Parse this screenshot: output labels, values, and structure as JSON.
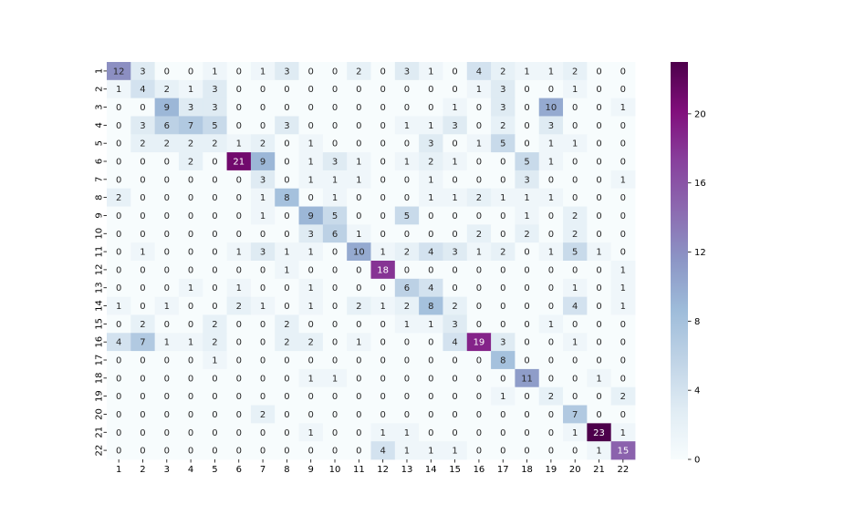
{
  "chart_data": {
    "type": "heatmap",
    "title": "",
    "xlabel": "",
    "ylabel": "",
    "x_labels": [
      "1",
      "2",
      "3",
      "4",
      "5",
      "6",
      "7",
      "8",
      "9",
      "10",
      "11",
      "12",
      "13",
      "14",
      "15",
      "16",
      "17",
      "18",
      "19",
      "20",
      "21",
      "22"
    ],
    "y_labels": [
      "1",
      "2",
      "3",
      "4",
      "5",
      "6",
      "7",
      "8",
      "9",
      "10",
      "11",
      "12",
      "13",
      "14",
      "15",
      "16",
      "17",
      "18",
      "19",
      "20",
      "21",
      "22"
    ],
    "values": [
      [
        12,
        3,
        0,
        0,
        1,
        0,
        1,
        3,
        0,
        0,
        2,
        0,
        3,
        1,
        0,
        4,
        2,
        1,
        1,
        2,
        0,
        0
      ],
      [
        1,
        4,
        2,
        1,
        3,
        0,
        0,
        0,
        0,
        0,
        0,
        0,
        0,
        0,
        0,
        1,
        3,
        0,
        0,
        1,
        0,
        0
      ],
      [
        0,
        0,
        9,
        3,
        3,
        0,
        0,
        0,
        0,
        0,
        0,
        0,
        0,
        0,
        1,
        0,
        3,
        0,
        10,
        0,
        0,
        1
      ],
      [
        0,
        3,
        6,
        7,
        5,
        0,
        0,
        3,
        0,
        0,
        0,
        0,
        1,
        1,
        3,
        0,
        2,
        0,
        3,
        0,
        0,
        0
      ],
      [
        0,
        2,
        2,
        2,
        2,
        1,
        2,
        0,
        1,
        0,
        0,
        0,
        0,
        3,
        0,
        1,
        5,
        0,
        1,
        1,
        0,
        0
      ],
      [
        0,
        0,
        0,
        2,
        0,
        21,
        9,
        0,
        1,
        3,
        1,
        0,
        1,
        2,
        1,
        0,
        0,
        5,
        1,
        0,
        0,
        0
      ],
      [
        0,
        0,
        0,
        0,
        0,
        0,
        3,
        0,
        1,
        1,
        1,
        0,
        0,
        1,
        0,
        0,
        0,
        3,
        0,
        0,
        0,
        1
      ],
      [
        2,
        0,
        0,
        0,
        0,
        0,
        1,
        8,
        0,
        1,
        0,
        0,
        0,
        1,
        1,
        2,
        1,
        1,
        1,
        0,
        0,
        0
      ],
      [
        0,
        0,
        0,
        0,
        0,
        0,
        1,
        0,
        9,
        5,
        0,
        0,
        5,
        0,
        0,
        0,
        0,
        1,
        0,
        2,
        0,
        0
      ],
      [
        0,
        0,
        0,
        0,
        0,
        0,
        0,
        0,
        3,
        6,
        1,
        0,
        0,
        0,
        0,
        2,
        0,
        2,
        0,
        2,
        0,
        0
      ],
      [
        0,
        1,
        0,
        0,
        0,
        1,
        3,
        1,
        1,
        0,
        10,
        1,
        2,
        4,
        3,
        1,
        2,
        0,
        1,
        5,
        1,
        0
      ],
      [
        0,
        0,
        0,
        0,
        0,
        0,
        0,
        1,
        0,
        0,
        0,
        18,
        0,
        0,
        0,
        0,
        0,
        0,
        0,
        0,
        0,
        1
      ],
      [
        0,
        0,
        0,
        1,
        0,
        1,
        0,
        0,
        1,
        0,
        0,
        0,
        6,
        4,
        0,
        0,
        0,
        0,
        0,
        1,
        0,
        1
      ],
      [
        1,
        0,
        1,
        0,
        0,
        2,
        1,
        0,
        1,
        0,
        2,
        1,
        2,
        8,
        2,
        0,
        0,
        0,
        0,
        4,
        0,
        1
      ],
      [
        0,
        2,
        0,
        0,
        2,
        0,
        0,
        2,
        0,
        0,
        0,
        0,
        1,
        1,
        3,
        0,
        0,
        0,
        1,
        0,
        0,
        0
      ],
      [
        4,
        7,
        1,
        1,
        2,
        0,
        0,
        2,
        2,
        0,
        1,
        0,
        0,
        0,
        4,
        19,
        3,
        0,
        0,
        1,
        0,
        0
      ],
      [
        0,
        0,
        0,
        0,
        1,
        0,
        0,
        0,
        0,
        0,
        0,
        0,
        0,
        0,
        0,
        0,
        8,
        0,
        0,
        0,
        0,
        0
      ],
      [
        0,
        0,
        0,
        0,
        0,
        0,
        0,
        0,
        1,
        1,
        0,
        0,
        0,
        0,
        0,
        0,
        0,
        11,
        0,
        0,
        1,
        0
      ],
      [
        0,
        0,
        0,
        0,
        0,
        0,
        0,
        0,
        0,
        0,
        0,
        0,
        0,
        0,
        0,
        0,
        1,
        0,
        2,
        0,
        0,
        2
      ],
      [
        0,
        0,
        0,
        0,
        0,
        0,
        2,
        0,
        0,
        0,
        0,
        0,
        0,
        0,
        0,
        0,
        0,
        0,
        0,
        7,
        0,
        0
      ],
      [
        0,
        0,
        0,
        0,
        0,
        0,
        0,
        0,
        1,
        0,
        0,
        1,
        1,
        0,
        0,
        0,
        0,
        0,
        0,
        1,
        23,
        1
      ],
      [
        0,
        0,
        0,
        0,
        0,
        0,
        0,
        0,
        0,
        0,
        0,
        4,
        1,
        1,
        1,
        0,
        0,
        0,
        0,
        0,
        1,
        15
      ]
    ],
    "vmin": 0,
    "vmax": 23,
    "colormap": "BuPu",
    "colorbar_ticks": [
      0,
      4,
      8,
      12,
      16,
      20
    ],
    "annotations": true,
    "grid": false
  }
}
